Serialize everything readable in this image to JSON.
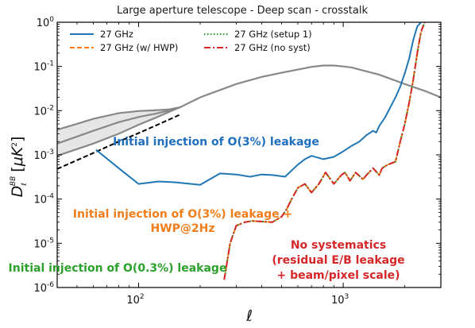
{
  "chart_data": {
    "type": "line",
    "title": "Large aperture telescope - Deep scan - crosstalk",
    "xlabel": "ℓ",
    "ylabel": "D_ℓ^BB [μK²]",
    "ylabel_parts": {
      "D": "D",
      "sup": "BB",
      "sub": "ℓ",
      "unit_open": "[",
      "mu": "μK",
      "exp": "2",
      "unit_close": "]"
    },
    "xscale": "log",
    "yscale": "log",
    "xlim": [
      40,
      3000
    ],
    "ylim": [
      1e-06,
      1
    ],
    "x_ticks": [
      {
        "value": 100,
        "base": "10",
        "exp": "2"
      },
      {
        "value": 1000,
        "base": "10",
        "exp": "3"
      }
    ],
    "y_ticks": [
      {
        "value": 1e-06,
        "base": "10",
        "exp": "-6"
      },
      {
        "value": 1e-05,
        "base": "10",
        "exp": "-5"
      },
      {
        "value": 0.0001,
        "base": "10",
        "exp": "-4"
      },
      {
        "value": 0.001,
        "base": "10",
        "exp": "-3"
      },
      {
        "value": 0.01,
        "base": "10",
        "exp": "-2"
      },
      {
        "value": 0.1,
        "base": "10",
        "exp": "-1"
      },
      {
        "value": 1,
        "base": "10",
        "exp": "0"
      }
    ],
    "grid": false,
    "legend_position": "top-left",
    "legend_columns": 2,
    "series": [
      {
        "name": "27 GHz",
        "color": "#1f77b4",
        "dash": "solid",
        "x": [
          62,
          80,
          100,
          125,
          150,
          200,
          250,
          300,
          350,
          400,
          450,
          520,
          600,
          650,
          700,
          800,
          900,
          1000,
          1100,
          1200,
          1300,
          1400,
          1450,
          1500,
          1600,
          1700,
          1800,
          1900,
          2000,
          2100,
          2200,
          2300,
          2400
        ],
        "y": [
          0.0013,
          0.0005,
          0.00022,
          0.00025,
          0.00024,
          0.00021,
          0.00038,
          0.00036,
          0.00032,
          0.00036,
          0.00035,
          0.00032,
          0.0006,
          0.0008,
          0.00095,
          0.0008,
          0.0009,
          0.0012,
          0.0016,
          0.002,
          0.0028,
          0.0035,
          0.0032,
          0.0045,
          0.007,
          0.012,
          0.02,
          0.035,
          0.07,
          0.15,
          0.4,
          0.8,
          1.0
        ]
      },
      {
        "name": "27 GHz (w/ HWP)",
        "color": "#ff7f0e",
        "dash": "dashed",
        "x": [
          262,
          280,
          300,
          330,
          360,
          400,
          450,
          500,
          530,
          560,
          600,
          650,
          700,
          760,
          820,
          900,
          980,
          1020,
          1080,
          1150,
          1250,
          1300,
          1400,
          1500,
          1550,
          1650,
          1800,
          1900,
          2000,
          2100,
          2200,
          2300,
          2400,
          2500
        ],
        "y": [
          1.5e-06,
          1e-05,
          2.5e-05,
          3e-05,
          3.2e-05,
          3.1e-05,
          3e-05,
          4e-05,
          6e-05,
          0.0001,
          0.00018,
          0.00022,
          0.00014,
          0.00022,
          0.0004,
          0.00022,
          0.00035,
          0.0004,
          0.00026,
          0.0004,
          0.00028,
          0.00035,
          0.0005,
          0.00035,
          0.0005,
          0.0006,
          0.0007,
          0.002,
          0.005,
          0.015,
          0.05,
          0.2,
          0.6,
          1.0
        ]
      },
      {
        "name": "27 GHz (setup 1)",
        "color": "#2ca02c",
        "dash": "dotted",
        "x": [
          262,
          280,
          300,
          330,
          360,
          400,
          450,
          500,
          530,
          560,
          600,
          650,
          700,
          760,
          820,
          900,
          980,
          1020,
          1080,
          1150,
          1250,
          1300,
          1400,
          1500,
          1550,
          1650,
          1800,
          1900,
          2000,
          2100,
          2200,
          2300,
          2400,
          2500
        ],
        "y": [
          1.5e-06,
          1e-05,
          2.5e-05,
          3e-05,
          3.2e-05,
          3.1e-05,
          3e-05,
          4e-05,
          6e-05,
          0.0001,
          0.00018,
          0.00022,
          0.00014,
          0.00022,
          0.0004,
          0.00022,
          0.00035,
          0.0004,
          0.00026,
          0.0004,
          0.00028,
          0.00035,
          0.0005,
          0.00035,
          0.0005,
          0.0006,
          0.0007,
          0.002,
          0.005,
          0.015,
          0.05,
          0.2,
          0.6,
          1.0
        ]
      },
      {
        "name": "27 GHz (no syst)",
        "color": "#d62728",
        "dash": "dashdot",
        "x": [
          262,
          280,
          300,
          330,
          360,
          400,
          450,
          500,
          530,
          560,
          600,
          650,
          700,
          760,
          820,
          900,
          980,
          1020,
          1080,
          1150,
          1250,
          1300,
          1400,
          1500,
          1550,
          1650,
          1800,
          1900,
          2000,
          2100,
          2200,
          2300,
          2400,
          2500
        ],
        "y": [
          1.5e-06,
          1e-05,
          2.5e-05,
          3e-05,
          3.2e-05,
          3.1e-05,
          3e-05,
          4e-05,
          6e-05,
          0.0001,
          0.00018,
          0.00022,
          0.00014,
          0.00022,
          0.0004,
          0.00022,
          0.00035,
          0.0004,
          0.00026,
          0.0004,
          0.00028,
          0.00035,
          0.0005,
          0.00035,
          0.0005,
          0.0006,
          0.0007,
          0.002,
          0.005,
          0.015,
          0.05,
          0.2,
          0.6,
          1.0
        ]
      }
    ],
    "reference_curves": {
      "color": "#888888",
      "band_fill": "#e6e6e6",
      "total_bb": {
        "x": [
          160,
          200,
          300,
          400,
          500,
          600,
          700,
          800,
          900,
          1000,
          1100,
          1200,
          1500,
          2000,
          2500,
          3000
        ],
        "y": [
          0.012,
          0.02,
          0.04,
          0.058,
          0.072,
          0.085,
          0.098,
          0.105,
          0.105,
          0.1,
          0.095,
          0.085,
          0.065,
          0.04,
          0.028,
          0.02
        ]
      },
      "band_upper": {
        "x": [
          40,
          60,
          80,
          100,
          120,
          140,
          160
        ],
        "y": [
          0.0037,
          0.0065,
          0.0088,
          0.0098,
          0.0102,
          0.0106,
          0.012
        ]
      },
      "band_mid": {
        "x": [
          40,
          60,
          80,
          100,
          120,
          140,
          160
        ],
        "y": [
          0.0018,
          0.0035,
          0.0055,
          0.0072,
          0.0085,
          0.01,
          0.012
        ]
      },
      "band_lower": {
        "x": [
          40,
          60,
          80,
          100,
          120,
          140,
          160
        ],
        "y": [
          0.00095,
          0.0018,
          0.003,
          0.0048,
          0.0068,
          0.0092,
          0.012
        ]
      },
      "lensing": {
        "x": [
          40,
          60,
          80,
          100,
          120,
          140,
          160
        ],
        "y": [
          0.00048,
          0.0011,
          0.002,
          0.0031,
          0.0045,
          0.0062,
          0.0082
        ],
        "dash": "dashed",
        "color": "#000000"
      }
    },
    "annotations": [
      {
        "text": "Initial injection of O(3%) leakage",
        "color": "#1f6fbf"
      },
      {
        "text": "Initial injection of O(3%) leakage +",
        "color": "#f07d1a"
      },
      {
        "text": "HWP@2Hz",
        "color": "#f07d1a"
      },
      {
        "text": "No systematics",
        "color": "#d62728"
      },
      {
        "text": "(residual E/B leakage",
        "color": "#d62728"
      },
      {
        "text": "+ beam/pixel scale)",
        "color": "#d62728"
      },
      {
        "text": "Initial injection of O(0.3%) leakage",
        "color": "#2ca02c"
      }
    ]
  }
}
